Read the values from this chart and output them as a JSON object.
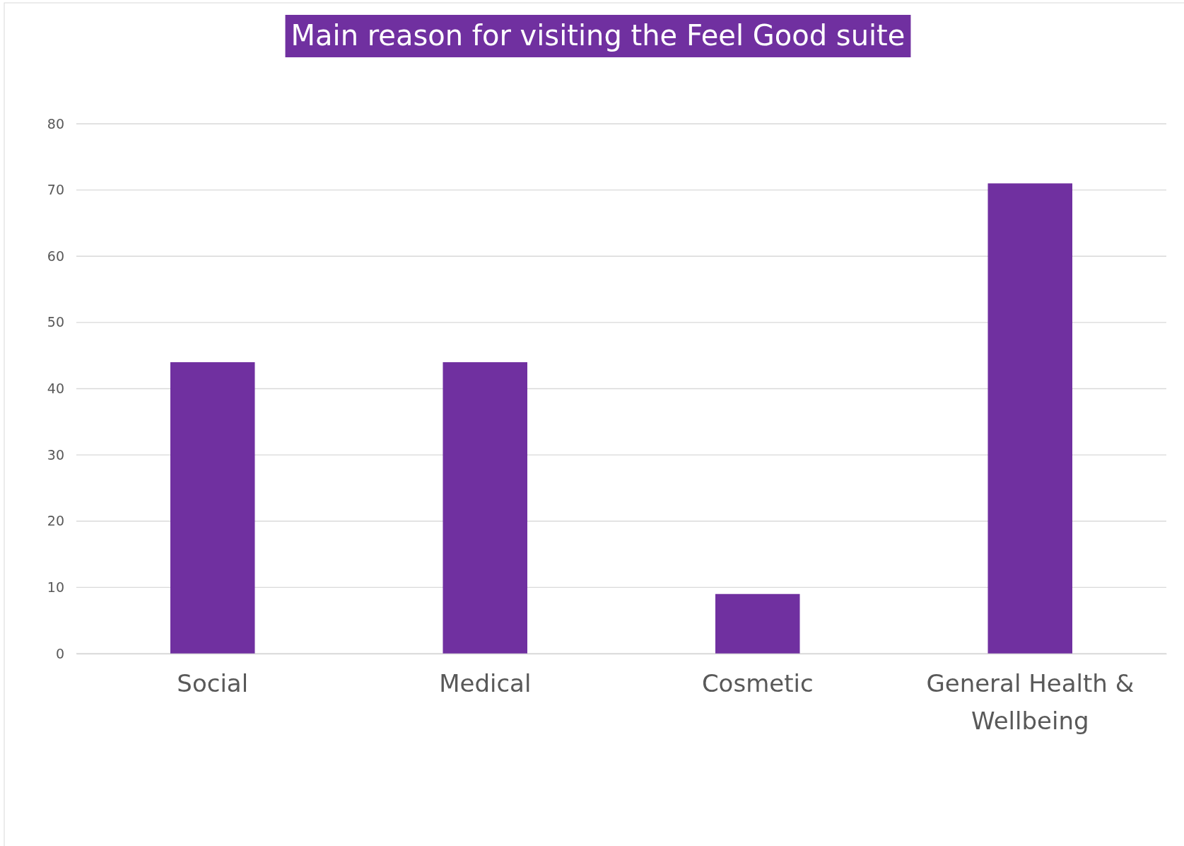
{
  "chart_data": {
    "type": "bar",
    "title": "Main reason for visiting the Feel Good suite",
    "categories": [
      "Social",
      "Medical",
      "Cosmetic",
      "General Health & Wellbeing"
    ],
    "values": [
      44,
      44,
      9,
      71
    ],
    "color": "#7030a0",
    "ylim": [
      0,
      80
    ],
    "yticks": [
      0,
      10,
      20,
      30,
      40,
      50,
      60,
      70,
      80
    ],
    "grid": "y"
  }
}
